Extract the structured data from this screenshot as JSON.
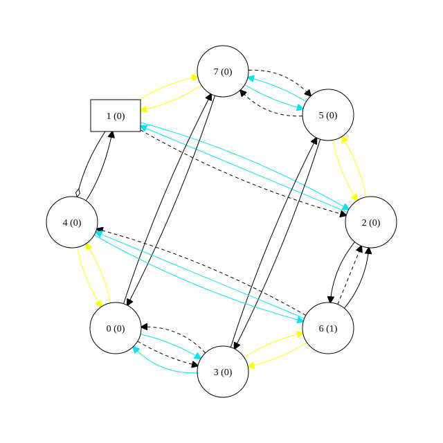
{
  "colors": {
    "black": "#000000",
    "yellow": "#ffff00",
    "cyan": "#00e5ee",
    "background": "#ffffff"
  },
  "nodes": [
    {
      "id": "7",
      "label": "7 (0)",
      "shape": "circle"
    },
    {
      "id": "1",
      "label": "1 (0)",
      "shape": "box"
    },
    {
      "id": "5",
      "label": "5 (0)",
      "shape": "circle"
    },
    {
      "id": "4",
      "label": "4 (0)",
      "shape": "circle"
    },
    {
      "id": "2",
      "label": "2 (0)",
      "shape": "circle"
    },
    {
      "id": "0",
      "label": "0 (0)",
      "shape": "circle"
    },
    {
      "id": "6",
      "label": "6 (1)",
      "shape": "circle"
    },
    {
      "id": "3",
      "label": "3 (0)",
      "shape": "circle"
    }
  ],
  "edges": [
    {
      "from": "1",
      "to": "7",
      "color": "yellow",
      "style": "solid",
      "head": "arrow"
    },
    {
      "from": "7",
      "to": "1",
      "color": "yellow",
      "style": "solid",
      "head": "arrow"
    },
    {
      "from": "5",
      "to": "7",
      "color": "black",
      "style": "dashed",
      "head": "arrow"
    },
    {
      "from": "7",
      "to": "5",
      "color": "cyan",
      "style": "solid",
      "head": "arrow"
    },
    {
      "from": "5",
      "to": "7",
      "color": "cyan",
      "style": "solid",
      "head": "arrow"
    },
    {
      "from": "7",
      "to": "5",
      "color": "black",
      "style": "dashed",
      "head": "arrow"
    },
    {
      "from": "1",
      "to": "2",
      "color": "cyan",
      "style": "solid",
      "head": "arrow"
    },
    {
      "from": "2",
      "to": "1",
      "color": "cyan",
      "style": "solid",
      "head": "arrow"
    },
    {
      "from": "1",
      "to": "2",
      "color": "black",
      "style": "dashed",
      "head": "arrow"
    },
    {
      "from": "4",
      "to": "1",
      "color": "black",
      "style": "solid",
      "head": "arrow"
    },
    {
      "from": "1",
      "to": "4",
      "color": "black",
      "style": "solid",
      "head": "diamond"
    },
    {
      "from": "5",
      "to": "2",
      "color": "yellow",
      "style": "solid",
      "head": "arrow"
    },
    {
      "from": "2",
      "to": "5",
      "color": "yellow",
      "style": "solid",
      "head": "arrow"
    },
    {
      "from": "0",
      "to": "7",
      "color": "black",
      "style": "solid",
      "head": "arrow"
    },
    {
      "from": "7",
      "to": "0",
      "color": "black",
      "style": "solid",
      "head": "arrow"
    },
    {
      "from": "3",
      "to": "5",
      "color": "black",
      "style": "solid",
      "head": "arrow"
    },
    {
      "from": "5",
      "to": "3",
      "color": "black",
      "style": "solid",
      "head": "arrow"
    },
    {
      "from": "6",
      "to": "4",
      "color": "black",
      "style": "dashed",
      "head": "arrow"
    },
    {
      "from": "6",
      "to": "4",
      "color": "cyan",
      "style": "solid",
      "head": "arrow"
    },
    {
      "from": "4",
      "to": "6",
      "color": "cyan",
      "style": "solid",
      "head": "arrow"
    },
    {
      "from": "4",
      "to": "0",
      "color": "yellow",
      "style": "solid",
      "head": "arrow"
    },
    {
      "from": "0",
      "to": "4",
      "color": "yellow",
      "style": "solid",
      "head": "arrow"
    },
    {
      "from": "6",
      "to": "2",
      "color": "black",
      "style": "solid",
      "head": "arrow"
    },
    {
      "from": "6",
      "to": "2",
      "color": "black",
      "style": "dashed",
      "head": "arrow"
    },
    {
      "from": "2",
      "to": "6",
      "color": "black",
      "style": "solid",
      "head": "arrow"
    },
    {
      "from": "3",
      "to": "0",
      "color": "black",
      "style": "dashed",
      "head": "arrow"
    },
    {
      "from": "0",
      "to": "3",
      "color": "cyan",
      "style": "solid",
      "head": "arrow"
    },
    {
      "from": "0",
      "to": "3",
      "color": "black",
      "style": "dashed",
      "head": "arrow"
    },
    {
      "from": "3",
      "to": "0",
      "color": "cyan",
      "style": "solid",
      "head": "arrow"
    },
    {
      "from": "3",
      "to": "6",
      "color": "yellow",
      "style": "solid",
      "head": "arrow"
    },
    {
      "from": "6",
      "to": "3",
      "color": "yellow",
      "style": "solid",
      "head": "arrow"
    }
  ]
}
